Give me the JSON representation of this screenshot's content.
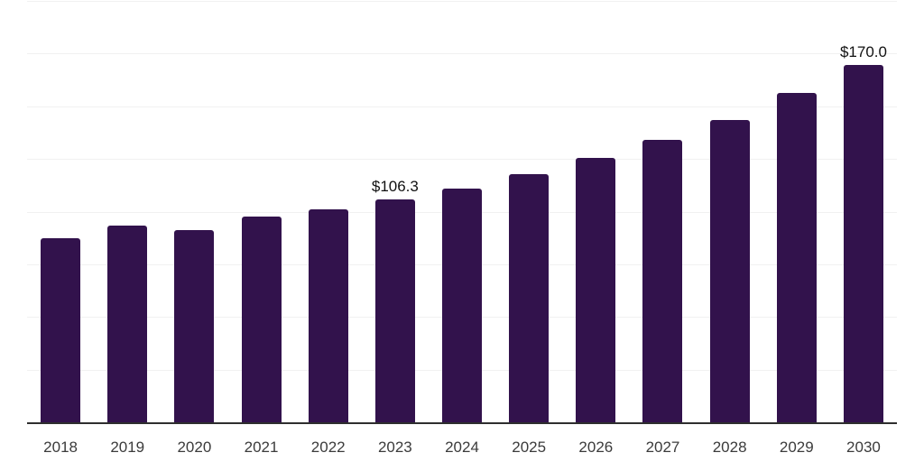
{
  "chart_data": {
    "type": "bar",
    "title": "",
    "xlabel": "",
    "ylabel": "",
    "categories": [
      "2018",
      "2019",
      "2020",
      "2021",
      "2022",
      "2023",
      "2024",
      "2025",
      "2026",
      "2027",
      "2028",
      "2029",
      "2030"
    ],
    "values": [
      87.7,
      93.6,
      91.5,
      98.0,
      101.5,
      106.3,
      111.4,
      118.1,
      125.9,
      134.3,
      144.0,
      156.7,
      170.0
    ],
    "data_labels": [
      "",
      "",
      "",
      "",
      "",
      "$106.3",
      "",
      "",
      "",
      "",
      "",
      "",
      "$170.0"
    ],
    "ylim": [
      0,
      200
    ],
    "gridline_step": 25,
    "grid": "horizontal",
    "legend_position": "none",
    "colors": {
      "bar": "#32124C",
      "gridline": "#f1f1f1",
      "axis_line": "#2e2e2e",
      "tick_label": "#3b3b3b",
      "data_label": "#111111",
      "background": "#ffffff"
    }
  }
}
